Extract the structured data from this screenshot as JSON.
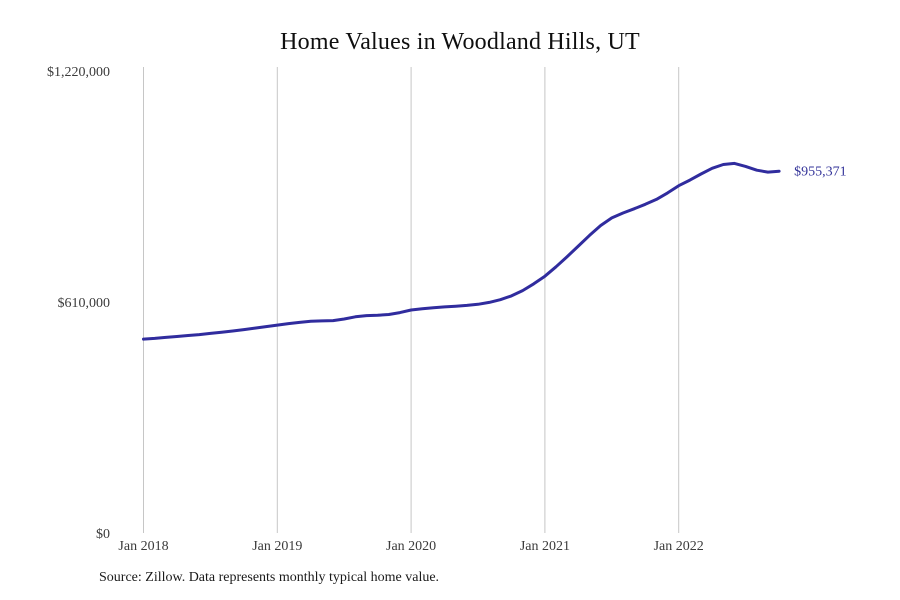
{
  "chart": {
    "title": "Home Values in Woodland Hills, UT",
    "source_note": "Source: Zillow. Data represents monthly typical home value.",
    "end_label": "$955,371",
    "colors": {
      "line": "#302c9e",
      "grid": "#c6c6c6",
      "tick_text": "#3b3b3b",
      "end_label_text": "#333399",
      "title_text": "#0f0f0f",
      "background": "#ffffff"
    }
  },
  "chart_data": {
    "type": "line",
    "title": "Home Values in Woodland Hills, UT",
    "xlabel": "",
    "ylabel": "",
    "ylim": [
      0,
      1220000
    ],
    "grid": "vertical-only",
    "legend": "none",
    "final_value": 955371,
    "final_value_label": "$955,371",
    "y_ticks": [
      {
        "value": 0,
        "label": "$0"
      },
      {
        "value": 610000,
        "label": "$610,000"
      },
      {
        "value": 1220000,
        "label": "$1,220,000"
      }
    ],
    "x_ticks": [
      {
        "index": 0,
        "label": "Jan 2018"
      },
      {
        "index": 12,
        "label": "Jan 2019"
      },
      {
        "index": 24,
        "label": "Jan 2020"
      },
      {
        "index": 36,
        "label": "Jan 2021"
      },
      {
        "index": 48,
        "label": "Jan 2022"
      }
    ],
    "x": [
      "2018-01",
      "2018-02",
      "2018-03",
      "2018-04",
      "2018-05",
      "2018-06",
      "2018-07",
      "2018-08",
      "2018-09",
      "2018-10",
      "2018-11",
      "2018-12",
      "2019-01",
      "2019-02",
      "2019-03",
      "2019-04",
      "2019-05",
      "2019-06",
      "2019-07",
      "2019-08",
      "2019-09",
      "2019-10",
      "2019-11",
      "2019-12",
      "2020-01",
      "2020-02",
      "2020-03",
      "2020-04",
      "2020-05",
      "2020-06",
      "2020-07",
      "2020-08",
      "2020-09",
      "2020-10",
      "2020-11",
      "2020-12",
      "2021-01",
      "2021-02",
      "2021-03",
      "2021-04",
      "2021-05",
      "2021-06",
      "2021-07",
      "2021-08",
      "2021-09",
      "2021-10",
      "2021-11",
      "2021-12",
      "2022-01",
      "2022-02",
      "2022-03",
      "2022-04",
      "2022-05",
      "2022-06",
      "2022-07",
      "2022-08",
      "2022-09",
      "2022-10"
    ],
    "values": [
      512000,
      514000,
      516500,
      519000,
      521500,
      524000,
      527000,
      530000,
      533500,
      537000,
      541000,
      545000,
      549000,
      553000,
      556000,
      559000,
      560000,
      561000,
      565000,
      571000,
      574000,
      575000,
      577000,
      582000,
      589000,
      592000,
      595000,
      597000,
      599000,
      601000,
      604000,
      609000,
      616000,
      626000,
      640000,
      658000,
      678000,
      703000,
      730000,
      758000,
      786000,
      812000,
      832000,
      845000,
      856000,
      868000,
      881000,
      898000,
      917000,
      932000,
      948000,
      963000,
      973000,
      976000,
      968000,
      958000,
      953000,
      955371
    ]
  }
}
